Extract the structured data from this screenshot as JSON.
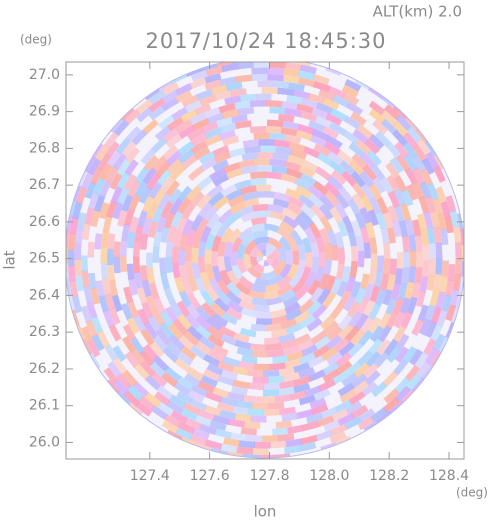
{
  "chart_data": {
    "type": "radar-ppi",
    "title": "2017/10/24 18:45:30",
    "subtitle": "ALT(km) 2.0",
    "x_label": "lon",
    "y_label": "lat",
    "x_unit": "(deg)",
    "y_unit": "(deg)",
    "xlim": [
      127.12,
      128.45
    ],
    "ylim": [
      25.955,
      27.035
    ],
    "xticks": [
      127.4,
      127.6,
      127.8,
      {
        "value": 128,
        "label": "128.0"
      },
      128.2,
      128.4
    ],
    "yticks": [
      {
        "value": 26,
        "label": "26.0"
      },
      26.1,
      26.2,
      26.3,
      26.4,
      26.5,
      26.6,
      26.7,
      26.8,
      26.9,
      {
        "value": 27,
        "label": "27.0"
      }
    ]
  }
}
